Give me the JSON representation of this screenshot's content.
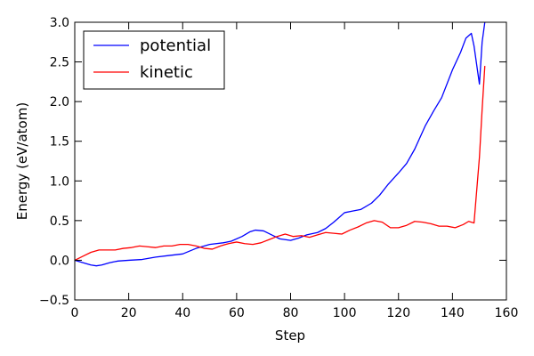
{
  "chart_data": {
    "type": "line",
    "xlabel": "Step",
    "ylabel": "Energy (eV/atom)",
    "xlim": [
      0,
      160
    ],
    "ylim": [
      -0.5,
      3.0
    ],
    "xticks": [
      0,
      20,
      40,
      60,
      80,
      100,
      120,
      140,
      160
    ],
    "yticks": [
      -0.5,
      0.0,
      0.5,
      1.0,
      1.5,
      2.0,
      2.5,
      3.0
    ],
    "xtick_labels": [
      "0",
      "20",
      "40",
      "60",
      "80",
      "100",
      "120",
      "140",
      "160"
    ],
    "ytick_labels": [
      "−0.5",
      "0.0",
      "0.5",
      "1.0",
      "1.5",
      "2.0",
      "2.5",
      "3.0"
    ],
    "grid": false,
    "legend_position": "top-left",
    "series": [
      {
        "name": "potential",
        "color": "#0000ff",
        "x": [
          0,
          3,
          6,
          8,
          10,
          13,
          16,
          20,
          25,
          30,
          35,
          40,
          45,
          50,
          55,
          58,
          62,
          65,
          67,
          70,
          73,
          76,
          80,
          83,
          86,
          90,
          93,
          96,
          100,
          103,
          106,
          110,
          113,
          116,
          120,
          123,
          126,
          130,
          133,
          136,
          140,
          143,
          145,
          147,
          148,
          150,
          151,
          152
        ],
        "y": [
          0.0,
          -0.03,
          -0.06,
          -0.07,
          -0.06,
          -0.03,
          -0.01,
          0.0,
          0.01,
          0.04,
          0.06,
          0.08,
          0.15,
          0.2,
          0.22,
          0.24,
          0.3,
          0.36,
          0.38,
          0.37,
          0.32,
          0.27,
          0.25,
          0.28,
          0.32,
          0.35,
          0.4,
          0.48,
          0.6,
          0.62,
          0.64,
          0.72,
          0.82,
          0.95,
          1.1,
          1.22,
          1.4,
          1.7,
          1.88,
          2.05,
          2.4,
          2.62,
          2.8,
          2.86,
          2.7,
          2.22,
          2.75,
          3.0
        ]
      },
      {
        "name": "kinetic",
        "color": "#ff0000",
        "x": [
          0,
          3,
          6,
          9,
          12,
          15,
          18,
          21,
          24,
          27,
          30,
          33,
          36,
          39,
          42,
          45,
          48,
          51,
          54,
          57,
          60,
          63,
          66,
          69,
          72,
          75,
          78,
          81,
          84,
          87,
          90,
          93,
          96,
          99,
          102,
          105,
          108,
          111,
          114,
          117,
          120,
          123,
          126,
          129,
          132,
          135,
          138,
          141,
          144,
          146,
          148,
          150,
          151,
          152
        ],
        "y": [
          0.0,
          0.05,
          0.1,
          0.13,
          0.13,
          0.13,
          0.15,
          0.16,
          0.18,
          0.17,
          0.16,
          0.18,
          0.18,
          0.2,
          0.2,
          0.18,
          0.15,
          0.14,
          0.18,
          0.21,
          0.23,
          0.21,
          0.2,
          0.22,
          0.26,
          0.3,
          0.33,
          0.3,
          0.31,
          0.29,
          0.32,
          0.35,
          0.34,
          0.33,
          0.38,
          0.42,
          0.47,
          0.5,
          0.48,
          0.41,
          0.41,
          0.44,
          0.49,
          0.48,
          0.46,
          0.43,
          0.43,
          0.41,
          0.45,
          0.49,
          0.47,
          1.3,
          1.9,
          2.45
        ]
      }
    ]
  }
}
